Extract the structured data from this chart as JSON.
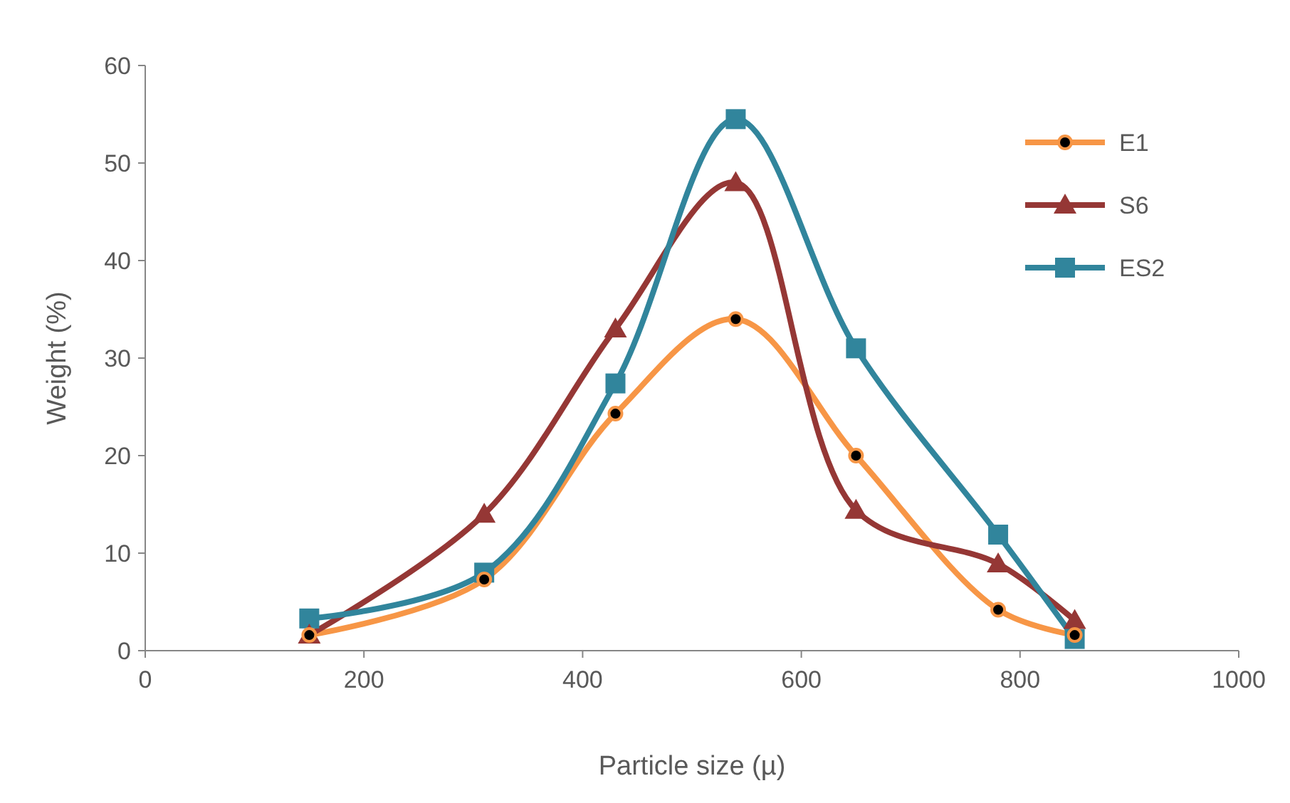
{
  "chart_data": {
    "type": "line",
    "xlabel": "Particle size (µ)",
    "ylabel": "Weight (%)",
    "xlim": [
      0,
      1000
    ],
    "xticks": [
      0,
      200,
      400,
      600,
      800,
      1000
    ],
    "ylim": [
      0,
      60
    ],
    "yticks": [
      0,
      10,
      20,
      30,
      40,
      50,
      60
    ],
    "grid": false,
    "legend": "top right",
    "line_style": "solid",
    "series": [
      {
        "name": "E1",
        "color": "#f79646",
        "marker": "circle",
        "x": [
          150,
          310,
          430,
          540,
          650,
          780,
          850
        ],
        "values": [
          1.6,
          7.3,
          24.3,
          34,
          20,
          4.2,
          1.6
        ]
      },
      {
        "name": "S6",
        "color": "#953735",
        "marker": "triangle",
        "x": [
          150,
          310,
          430,
          540,
          650,
          780,
          850
        ],
        "values": [
          1.6,
          14,
          33,
          48,
          14.4,
          8.9,
          3.1
        ]
      },
      {
        "name": "ES2",
        "color": "#31859c",
        "marker": "square",
        "x": [
          150,
          310,
          430,
          540,
          650,
          780,
          850
        ],
        "values": [
          3.3,
          8,
          27.4,
          54.5,
          31,
          11.9,
          1.2
        ]
      }
    ]
  }
}
